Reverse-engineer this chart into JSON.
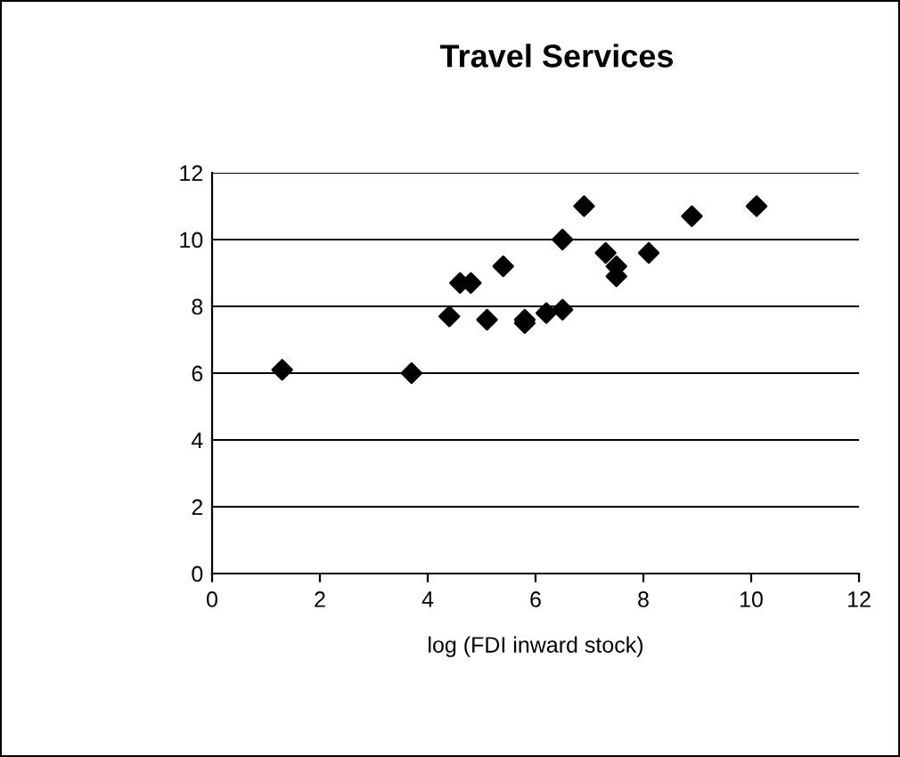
{
  "chart_data": {
    "type": "scatter",
    "title": "Travel Services",
    "xlabel": "log (FDI inward stock)",
    "series": [
      {
        "color": "#000000",
        "x": [
          1.3,
          3.7,
          4.4,
          4.6,
          4.8,
          5.1,
          5.4,
          5.8,
          5.8,
          6.2,
          6.5,
          6.5,
          6.9,
          7.3,
          7.5,
          7.5,
          8.1,
          8.9,
          10.1
        ],
        "values": [
          6.1,
          6.0,
          7.7,
          8.7,
          8.7,
          7.6,
          9.2,
          7.5,
          7.6,
          7.8,
          7.9,
          10.0,
          11.0,
          9.6,
          9.2,
          8.9,
          9.6,
          10.7,
          11.0
        ]
      }
    ],
    "xlim": [
      0,
      12
    ],
    "xticks": [
      0,
      2,
      4,
      6,
      8,
      10,
      12
    ],
    "ylim": [
      0,
      12
    ],
    "yticks": [
      0,
      2,
      4,
      6,
      8,
      10,
      12
    ],
    "grid": "y",
    "marker": "diamond",
    "legend": false
  }
}
